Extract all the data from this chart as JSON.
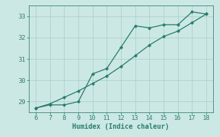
{
  "line1_x": [
    6,
    7,
    8,
    9,
    10,
    11,
    12,
    13,
    14,
    15,
    16,
    17,
    18
  ],
  "line1_y": [
    28.7,
    28.85,
    28.85,
    29.0,
    30.3,
    30.55,
    31.55,
    32.55,
    32.45,
    32.6,
    32.6,
    33.2,
    33.1
  ],
  "line2_x": [
    6,
    7,
    8,
    9,
    10,
    11,
    12,
    13,
    14,
    15,
    16,
    17,
    18
  ],
  "line2_y": [
    28.7,
    28.9,
    29.2,
    29.5,
    29.85,
    30.2,
    30.65,
    31.15,
    31.65,
    32.05,
    32.3,
    32.7,
    33.1
  ],
  "line_color": "#2a7d6f",
  "bg_color": "#cce8e4",
  "grid_color": "#aacfcc",
  "xlabel": "Humidex (Indice chaleur)",
  "ylim": [
    28.5,
    33.5
  ],
  "xlim": [
    5.5,
    18.5
  ],
  "yticks": [
    29,
    30,
    31,
    32,
    33
  ],
  "xticks": [
    6,
    7,
    8,
    9,
    10,
    11,
    12,
    13,
    14,
    15,
    16,
    17,
    18
  ],
  "xlabel_fontsize": 7,
  "tick_fontsize": 6.5,
  "marker_size": 2.5,
  "line_width": 1.0
}
